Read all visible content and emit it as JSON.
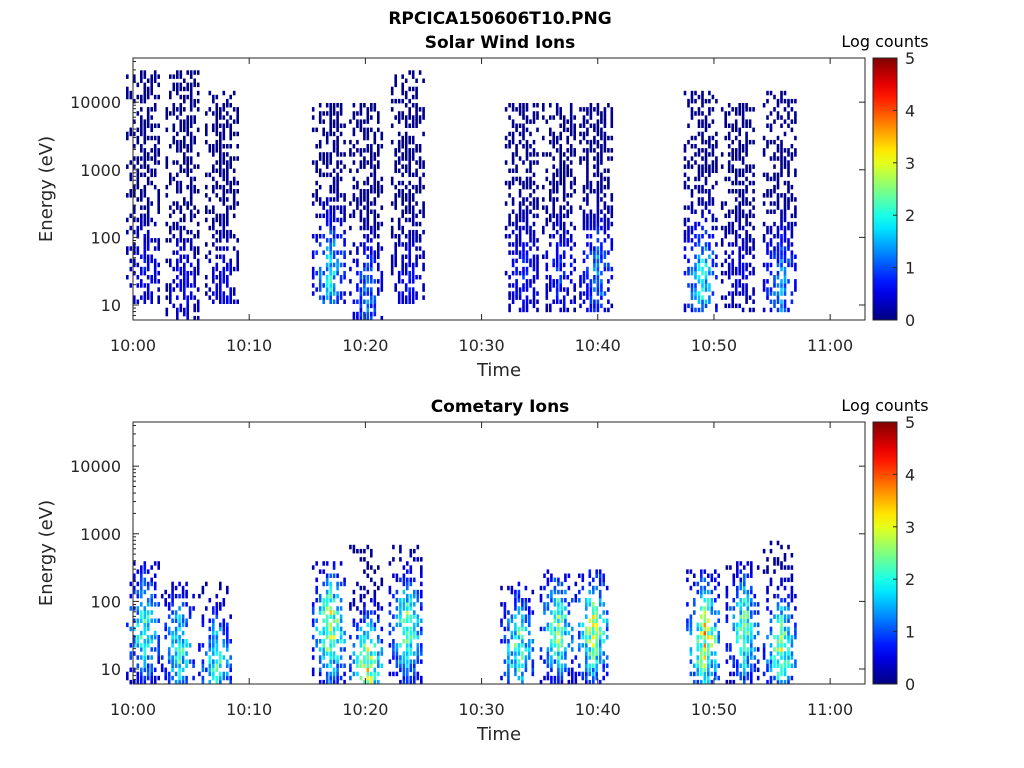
{
  "figure": {
    "title": "RPCICA150606T10.PNG"
  },
  "chart_data": [
    {
      "type": "heatmap",
      "title": "Solar Wind Ions",
      "xlabel": "Time",
      "ylabel": "Energy (eV)",
      "x_ticks": [
        "10:00",
        "10:10",
        "10:20",
        "10:30",
        "10:40",
        "10:50",
        "11:00"
      ],
      "x_range_min": [
        0,
        63
      ],
      "y_ticks": [
        10,
        100,
        1000,
        10000
      ],
      "y_tick_labels": [
        "10",
        "100",
        "1000",
        "10000"
      ],
      "y_range": [
        6,
        45000
      ],
      "y_scale": "log",
      "colorbar": {
        "label": "Log counts",
        "range": [
          0,
          5
        ],
        "ticks": [
          "0",
          "1",
          "2",
          "3",
          "4",
          "5"
        ],
        "colormap": "jet"
      },
      "bursts": [
        {
          "t": 0.8,
          "emin": 10,
          "emax": 30000,
          "peak_log": 0.6,
          "peak_e": 30
        },
        {
          "t": 4.2,
          "emin": 6,
          "emax": 30000,
          "peak_log": 0.6,
          "peak_e": 20
        },
        {
          "t": 7.6,
          "emin": 10,
          "emax": 15000,
          "peak_log": 0.5,
          "peak_e": 20
        },
        {
          "t": 16.8,
          "emin": 10,
          "emax": 10000,
          "peak_log": 1.6,
          "peak_e": 30
        },
        {
          "t": 20.0,
          "emin": 6,
          "emax": 10000,
          "peak_log": 1.1,
          "peak_e": 15
        },
        {
          "t": 23.6,
          "emin": 10,
          "emax": 30000,
          "peak_log": 0.6,
          "peak_e": 20
        },
        {
          "t": 33.4,
          "emin": 8,
          "emax": 10000,
          "peak_log": 0.7,
          "peak_e": 30
        },
        {
          "t": 36.6,
          "emin": 8,
          "emax": 10000,
          "peak_log": 0.8,
          "peak_e": 30
        },
        {
          "t": 39.8,
          "emin": 8,
          "emax": 10000,
          "peak_log": 1.2,
          "peak_e": 30
        },
        {
          "t": 48.8,
          "emin": 8,
          "emax": 15000,
          "peak_log": 1.7,
          "peak_e": 25
        },
        {
          "t": 52.0,
          "emin": 8,
          "emax": 10000,
          "peak_log": 0.5,
          "peak_e": 30
        },
        {
          "t": 55.6,
          "emin": 8,
          "emax": 15000,
          "peak_log": 1.3,
          "peak_e": 20
        }
      ]
    },
    {
      "type": "heatmap",
      "title": "Cometary Ions",
      "xlabel": "Time",
      "ylabel": "Energy (eV)",
      "x_ticks": [
        "10:00",
        "10:10",
        "10:20",
        "10:30",
        "10:40",
        "10:50",
        "11:00"
      ],
      "x_range_min": [
        0,
        63
      ],
      "y_ticks": [
        10,
        100,
        1000,
        10000
      ],
      "y_tick_labels": [
        "10",
        "100",
        "1000",
        "10000"
      ],
      "y_range": [
        6,
        45000
      ],
      "y_scale": "log",
      "colorbar": {
        "label": "Log counts",
        "range": [
          0,
          5
        ],
        "ticks": [
          "0",
          "1",
          "2",
          "3",
          "4",
          "5"
        ],
        "colormap": "jet"
      },
      "bursts": [
        {
          "t": 0.8,
          "emin": 6,
          "emax": 400,
          "peak_log": 2.0,
          "peak_e": 40
        },
        {
          "t": 3.8,
          "emin": 6,
          "emax": 200,
          "peak_log": 1.9,
          "peak_e": 20
        },
        {
          "t": 7.0,
          "emin": 6,
          "emax": 200,
          "peak_log": 1.9,
          "peak_e": 12
        },
        {
          "t": 16.8,
          "emin": 6,
          "emax": 400,
          "peak_log": 2.6,
          "peak_e": 40
        },
        {
          "t": 20.0,
          "emin": 6,
          "emax": 800,
          "peak_log": 2.7,
          "peak_e": 10
        },
        {
          "t": 23.4,
          "emin": 6,
          "emax": 700,
          "peak_log": 2.2,
          "peak_e": 40
        },
        {
          "t": 33.0,
          "emin": 6,
          "emax": 200,
          "peak_log": 2.1,
          "peak_e": 20
        },
        {
          "t": 36.4,
          "emin": 6,
          "emax": 300,
          "peak_log": 2.2,
          "peak_e": 40
        },
        {
          "t": 39.4,
          "emin": 6,
          "emax": 300,
          "peak_log": 2.5,
          "peak_e": 40
        },
        {
          "t": 49.0,
          "emin": 6,
          "emax": 300,
          "peak_log": 2.8,
          "peak_e": 30
        },
        {
          "t": 52.4,
          "emin": 6,
          "emax": 400,
          "peak_log": 2.1,
          "peak_e": 40
        },
        {
          "t": 55.6,
          "emin": 6,
          "emax": 800,
          "peak_log": 2.3,
          "peak_e": 20
        }
      ]
    }
  ]
}
